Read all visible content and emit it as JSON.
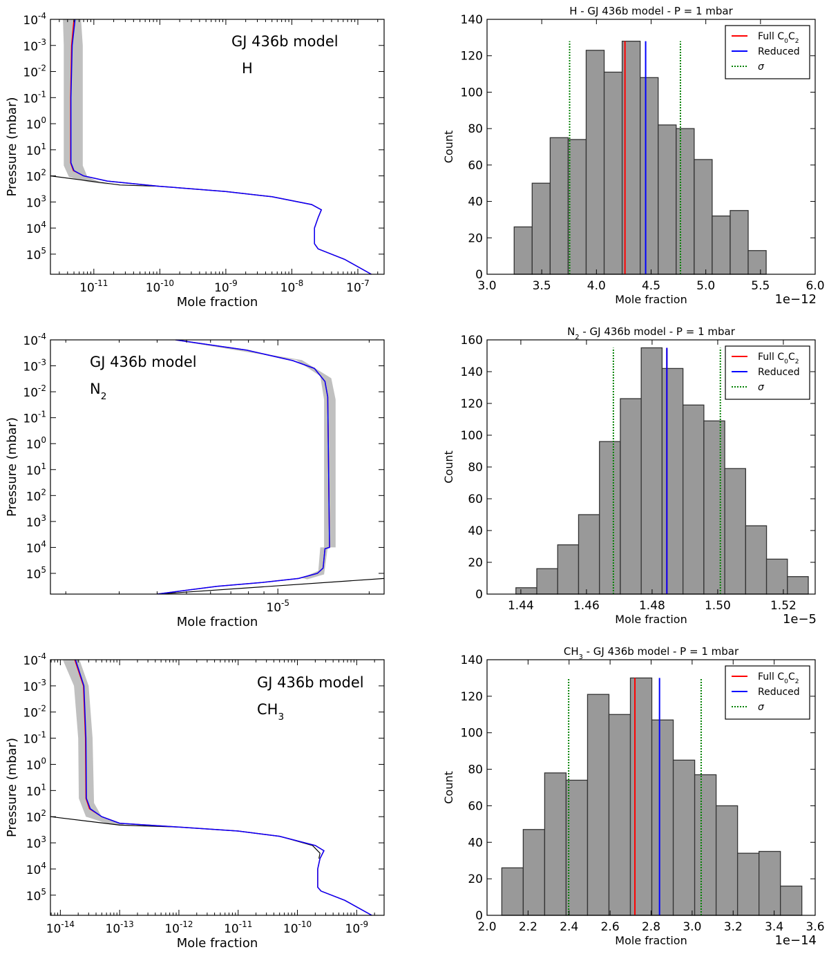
{
  "colors": {
    "full": "#ff0000",
    "reduced": "#0000ff",
    "sigma": "#008000",
    "band": "#c0c0c0",
    "bar_fill": "#999999",
    "bar_edge": "#333333",
    "limit_line": "#000000"
  },
  "chart_data": [
    {
      "type": "line",
      "annotation": "GJ 436b model",
      "species": [
        {
          "t": "H"
        }
      ],
      "xlabel": "Mole fraction",
      "ylabel": "Pressure (mbar)",
      "xscale": "log",
      "yscale": "log",
      "y_inverted": true,
      "xlim": [
        2.2e-12,
        2.5e-07
      ],
      "ylim": [
        0.0001,
        590000.0
      ],
      "x_ticks": [
        1e-11,
        1e-10,
        1e-09,
        1e-08,
        1e-07
      ],
      "y_ticks": [
        0.0001,
        0.001,
        0.01,
        0.1,
        1,
        10,
        100,
        1000,
        10000.0,
        100000.0
      ],
      "band": [
        [
          3.4e-12,
          0.0001
        ],
        [
          3.5e-12,
          0.001
        ],
        [
          3.5e-12,
          40
        ],
        [
          4.2e-12,
          110
        ],
        [
          8e-12,
          170
        ],
        [
          1.8e-11,
          220
        ],
        [
          1.3e-11,
          180
        ],
        [
          8e-12,
          110
        ],
        [
          6.8e-12,
          40
        ],
        [
          6.8e-12,
          0.001
        ],
        [
          6.4e-12,
          0.0001
        ]
      ],
      "limit": [
        [
          2.2e-12,
          100
        ],
        [
          2.5e-11,
          224
        ],
        [
          1e-10,
          251
        ],
        [
          1e-09,
          398
        ],
        [
          5e-09,
          631
        ],
        [
          2e-08,
          1259
        ]
      ],
      "full": [
        [
          5e-12,
          0.0001
        ],
        [
          4.6e-12,
          0.001
        ],
        [
          4.45e-12,
          0.1
        ],
        [
          4.45e-12,
          31.6
        ],
        [
          4.9e-12,
          63
        ],
        [
          7e-12,
          100
        ],
        [
          1.6e-11,
          158
        ],
        [
          1e-10,
          251
        ],
        [
          1e-09,
          398
        ],
        [
          5e-09,
          631
        ],
        [
          2e-08,
          1259
        ],
        [
          2.8e-08,
          2000
        ],
        [
          2.5e-08,
          3981
        ],
        [
          2.2e-08,
          10000.0
        ],
        [
          2.2e-08,
          39811
        ],
        [
          2.5e-08,
          63096
        ],
        [
          6.3e-08,
          158489
        ],
        [
          1.6e-07,
          588844
        ]
      ],
      "reduced": [
        [
          5.2e-12,
          0.0001
        ],
        [
          4.7e-12,
          0.001
        ],
        [
          4.5e-12,
          0.1
        ],
        [
          4.5e-12,
          31.6
        ],
        [
          5e-12,
          63
        ],
        [
          7e-12,
          100
        ],
        [
          1.6e-11,
          158
        ],
        [
          1e-10,
          251
        ],
        [
          1e-09,
          398
        ],
        [
          5e-09,
          631
        ],
        [
          2e-08,
          1259
        ],
        [
          2.8e-08,
          2000
        ],
        [
          2.5e-08,
          3981
        ],
        [
          2.2e-08,
          10000.0
        ],
        [
          2.2e-08,
          39811
        ],
        [
          2.5e-08,
          63096
        ],
        [
          6.3e-08,
          158489
        ],
        [
          1.6e-07,
          588844
        ]
      ]
    },
    {
      "type": "bar",
      "title": [
        {
          "t": "H"
        },
        {
          "t": " - GJ 436b model - P = 1 mbar"
        }
      ],
      "xlabel": "Mole fraction",
      "ylabel": "Count",
      "offset_text": "1e−12",
      "xlim": [
        3.0,
        6.0
      ],
      "ylim": [
        0,
        140
      ],
      "x_ticks": [
        3.0,
        3.5,
        4.0,
        4.5,
        5.0,
        5.5,
        6.0
      ],
      "y_ticks": [
        0,
        20,
        40,
        60,
        80,
        100,
        120,
        140
      ],
      "x_tick_decimals": 1,
      "bin_range": [
        3.248,
        5.552
      ],
      "counts": [
        26,
        50,
        75,
        74,
        123,
        111,
        128,
        108,
        82,
        80,
        63,
        32,
        35,
        13
      ],
      "full_value": 4.261,
      "reduced_value": 4.45,
      "sigma_values": [
        3.755,
        4.768
      ],
      "legend": [
        {
          "key": "full",
          "parts": [
            {
              "t": "Full C"
            },
            {
              "t": "0",
              "sub": true
            },
            {
              "t": "C"
            },
            {
              "t": "2",
              "sub": true
            }
          ]
        },
        {
          "key": "reduced",
          "parts": [
            {
              "t": "Reduced"
            }
          ]
        },
        {
          "key": "sigma",
          "parts": [
            {
              "t": "σ",
              "italic": true
            }
          ]
        }
      ],
      "legend_position": "top-right"
    },
    {
      "type": "line",
      "annotation": "GJ 436b model",
      "species": [
        {
          "t": "N"
        },
        {
          "t": "2",
          "sub": true
        }
      ],
      "xlabel": "Mole fraction",
      "ylabel": "Pressure (mbar)",
      "xscale": "log",
      "yscale": "log",
      "y_inverted": true,
      "xlim": [
        1.78e-06,
        2.24e-05
      ],
      "ylim": [
        0.0001,
        630000.0
      ],
      "x_ticks": [
        1e-05
      ],
      "y_ticks": [
        0.0001,
        0.001,
        0.01,
        0.1,
        1,
        10,
        100,
        1000,
        10000.0,
        100000.0
      ],
      "band": [
        [
          4.5e-06,
          0.0001
        ],
        [
          1.15e-05,
          0.0006
        ],
        [
          1.38e-05,
          0.0025
        ],
        [
          1.42e-05,
          0.02
        ],
        [
          1.42e-05,
          10000.0
        ],
        [
          1.38e-05,
          10000.0
        ],
        [
          1.36e-05,
          80000.0
        ],
        [
          1.2e-05,
          150000.0
        ],
        [
          1.25e-05,
          170000.0
        ],
        [
          1.42e-05,
          110000.0
        ],
        [
          1.46e-05,
          10000.0
        ],
        [
          1.55e-05,
          10000.0
        ],
        [
          1.55e-05,
          0.02
        ],
        [
          1.5e-05,
          0.003
        ],
        [
          1.2e-05,
          0.0006
        ],
        [
          4.8e-06,
          0.0001
        ]
      ],
      "limit": [
        [
          4e-06,
          630000.0
        ],
        [
          2.24e-05,
          158000.0
        ]
      ],
      "full": [
        [
          4.6e-06,
          0.0001
        ],
        [
          7.9e-06,
          0.00025
        ],
        [
          1.12e-05,
          0.00063
        ],
        [
          1.32e-05,
          0.00126
        ],
        [
          1.43e-05,
          0.004
        ],
        [
          1.46e-05,
          0.0158
        ],
        [
          1.48e-05,
          10000.0
        ],
        [
          1.43e-05,
          11200.0
        ],
        [
          1.41e-05,
          63000.0
        ],
        [
          1.35e-05,
          100000.0
        ],
        [
          1.17e-05,
          158000.0
        ],
        [
          8.9e-06,
          224000.0
        ],
        [
          6.3e-06,
          316000.0
        ],
        [
          4e-06,
          630000.0
        ]
      ],
      "reduced": [
        [
          4.6e-06,
          0.0001
        ],
        [
          7.9e-06,
          0.00025
        ],
        [
          1.12e-05,
          0.00063
        ],
        [
          1.32e-05,
          0.00126
        ],
        [
          1.43e-05,
          0.004
        ],
        [
          1.46e-05,
          0.0158
        ],
        [
          1.48e-05,
          10000.0
        ],
        [
          1.43e-05,
          11200.0
        ],
        [
          1.41e-05,
          63000.0
        ],
        [
          1.35e-05,
          100000.0
        ],
        [
          1.17e-05,
          158000.0
        ],
        [
          8.9e-06,
          224000.0
        ],
        [
          6.3e-06,
          316000.0
        ],
        [
          4e-06,
          630000.0
        ]
      ]
    },
    {
      "type": "bar",
      "title": [
        {
          "t": "N"
        },
        {
          "t": "2",
          "sub": true
        },
        {
          "t": " - GJ 436b model - P = 1 mbar"
        }
      ],
      "xlabel": "Mole fraction",
      "ylabel": "Count",
      "offset_text": "1e−5",
      "xlim": [
        1.4297,
        1.5297
      ],
      "ylim": [
        0,
        160
      ],
      "x_ticks": [
        1.44,
        1.46,
        1.48,
        1.5,
        1.52
      ],
      "y_ticks": [
        0,
        20,
        40,
        60,
        80,
        100,
        120,
        140,
        160
      ],
      "x_tick_decimals": 2,
      "bin_range": [
        1.4385,
        1.5276
      ],
      "counts": [
        4,
        16,
        31,
        50,
        96,
        123,
        155,
        142,
        119,
        109,
        79,
        43,
        22,
        11
      ],
      "full_value": 1.4845,
      "reduced_value": 1.4845,
      "sigma_values": [
        1.4682,
        1.5008
      ],
      "legend": [
        {
          "key": "full",
          "parts": [
            {
              "t": "Full C"
            },
            {
              "t": "0",
              "sub": true
            },
            {
              "t": "C"
            },
            {
              "t": "2",
              "sub": true
            }
          ]
        },
        {
          "key": "reduced",
          "parts": [
            {
              "t": "Reduced"
            }
          ]
        },
        {
          "key": "sigma",
          "parts": [
            {
              "t": "σ",
              "italic": true
            }
          ]
        }
      ],
      "legend_position": "top-right"
    },
    {
      "type": "line",
      "annotation": "GJ 436b model",
      "species": [
        {
          "t": "CH"
        },
        {
          "t": "3",
          "sub": true
        }
      ],
      "xlabel": "Mole fraction",
      "ylabel": "Pressure (mbar)",
      "xscale": "log",
      "yscale": "log",
      "y_inverted": true,
      "xlim": [
        6.8e-15,
        2.9e-09
      ],
      "ylim": [
        0.0001,
        590000.0
      ],
      "x_ticks": [
        1e-14,
        1e-13,
        1e-12,
        1e-11,
        1e-10,
        1e-09
      ],
      "y_ticks": [
        0.0001,
        0.001,
        0.01,
        0.1,
        1,
        10,
        100,
        1000,
        10000.0,
        100000.0
      ],
      "band": [
        [
          1.1e-14,
          0.0001
        ],
        [
          1.7e-14,
          0.001
        ],
        [
          2e-14,
          0.1
        ],
        [
          2.05e-14,
          20
        ],
        [
          2.7e-14,
          100
        ],
        [
          6e-14,
          180
        ],
        [
          1.5e-13,
          230
        ],
        [
          1e-13,
          180
        ],
        [
          5e-14,
          100
        ],
        [
          3.7e-14,
          30
        ],
        [
          3.5e-14,
          0.1
        ],
        [
          3e-14,
          0.001
        ],
        [
          2.1e-14,
          0.0001
        ]
      ],
      "limit": [
        [
          6.8e-15,
          100
        ],
        [
          1e-13,
          210
        ],
        [
          1e-12,
          251
        ],
        [
          1e-11,
          355
        ],
        [
          5e-11,
          562
        ],
        [
          1.8e-10,
          1259
        ],
        [
          2.4e-10,
          2500
        ],
        [
          2.3e-10,
          4000
        ]
      ],
      "full": [
        [
          1.75e-14,
          0.0001
        ],
        [
          2.45e-14,
          0.001
        ],
        [
          2.65e-14,
          0.1
        ],
        [
          2.7e-14,
          20
        ],
        [
          3.1e-14,
          50
        ],
        [
          5e-14,
          100
        ],
        [
          1e-13,
          178
        ],
        [
          1e-12,
          251
        ],
        [
          1e-11,
          355
        ],
        [
          5e-11,
          562
        ],
        [
          2e-10,
          1259
        ],
        [
          2.8e-10,
          2000
        ],
        [
          2.4e-10,
          3981
        ],
        [
          2.2e-10,
          10000.0
        ],
        [
          2.2e-10,
          50000.0
        ],
        [
          2.5e-10,
          70000.0
        ],
        [
          6.3e-10,
          158000.0
        ],
        [
          1.8e-09,
          590000.0
        ]
      ],
      "reduced": [
        [
          1.8e-14,
          0.0001
        ],
        [
          2.5e-14,
          0.001
        ],
        [
          2.7e-14,
          0.1
        ],
        [
          2.75e-14,
          20
        ],
        [
          3.2e-14,
          50
        ],
        [
          5e-14,
          100
        ],
        [
          1e-13,
          178
        ],
        [
          1e-12,
          251
        ],
        [
          1e-11,
          355
        ],
        [
          5e-11,
          562
        ],
        [
          2e-10,
          1259
        ],
        [
          2.8e-10,
          2000
        ],
        [
          2.4e-10,
          3981
        ],
        [
          2.2e-10,
          10000.0
        ],
        [
          2.2e-10,
          50000.0
        ],
        [
          2.5e-10,
          70000.0
        ],
        [
          6.3e-10,
          158000.0
        ],
        [
          1.8e-09,
          590000.0
        ]
      ]
    },
    {
      "type": "bar",
      "title": [
        {
          "t": "CH"
        },
        {
          "t": "3",
          "sub": true
        },
        {
          "t": " - GJ 436b model - P = 1 mbar"
        }
      ],
      "xlabel": "Mole fraction",
      "ylabel": "Count",
      "offset_text": "1e−14",
      "xlim": [
        2.0,
        3.6
      ],
      "ylim": [
        0,
        140
      ],
      "x_ticks": [
        2.0,
        2.2,
        2.4,
        2.6,
        2.8,
        3.0,
        3.2,
        3.4,
        3.6
      ],
      "y_ticks": [
        0,
        20,
        40,
        60,
        80,
        100,
        120,
        140
      ],
      "x_tick_decimals": 1,
      "bin_range": [
        2.072,
        3.535
      ],
      "counts": [
        26,
        47,
        78,
        74,
        121,
        110,
        130,
        107,
        85,
        77,
        60,
        34,
        35,
        16
      ],
      "full_value": 2.721,
      "reduced_value": 2.841,
      "sigma_values": [
        2.398,
        3.044
      ],
      "legend": [
        {
          "key": "full",
          "parts": [
            {
              "t": "Full C"
            },
            {
              "t": "0",
              "sub": true
            },
            {
              "t": "C"
            },
            {
              "t": "2",
              "sub": true
            }
          ]
        },
        {
          "key": "reduced",
          "parts": [
            {
              "t": "Reduced"
            }
          ]
        },
        {
          "key": "sigma",
          "parts": [
            {
              "t": "σ",
              "italic": true
            }
          ]
        }
      ],
      "legend_position": "top-right"
    }
  ]
}
